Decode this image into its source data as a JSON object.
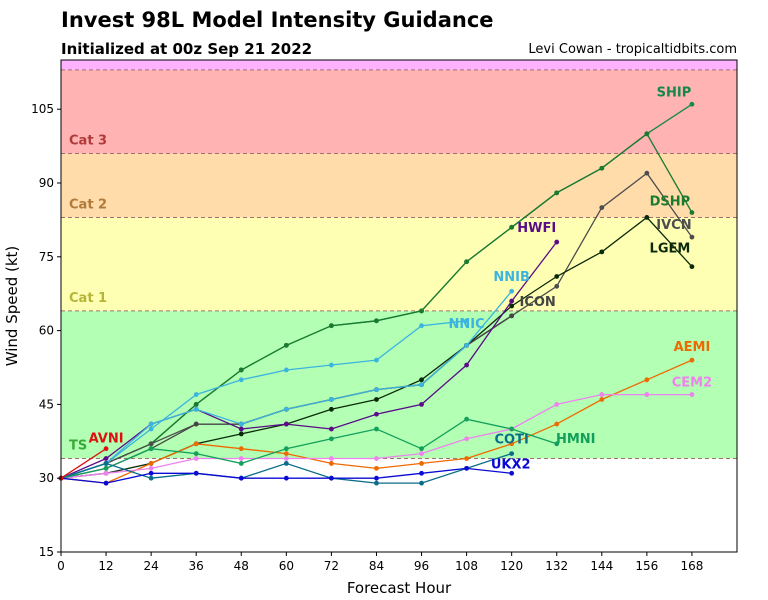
{
  "header": {
    "title": "Invest 98L Model Intensity Guidance",
    "subtitle": "Initialized at 00z Sep 21 2022",
    "credit": "Levi Cowan - tropicaltidbits.com"
  },
  "chart_data": {
    "type": "line",
    "xlabel": "Forecast Hour",
    "ylabel": "Wind Speed (kt)",
    "xlim": [
      0,
      180
    ],
    "ylim": [
      15,
      115
    ],
    "xticks": [
      0,
      12,
      24,
      36,
      48,
      60,
      72,
      84,
      96,
      108,
      120,
      132,
      144,
      156,
      168
    ],
    "yticks": [
      15,
      30,
      45,
      60,
      75,
      90,
      105
    ],
    "grid": false,
    "bands": [
      {
        "name": "TS",
        "from": 34,
        "to": 64,
        "color": "#b3ffb3",
        "label_color": "#3aa83a"
      },
      {
        "name": "Cat 1",
        "from": 64,
        "to": 83,
        "color": "#ffffb3",
        "label_color": "#b5b53a"
      },
      {
        "name": "Cat 2",
        "from": 83,
        "to": 96,
        "color": "#ffdcaa",
        "label_color": "#b07a3a"
      },
      {
        "name": "Cat 3",
        "from": 96,
        "to": 113,
        "color": "#ffb3b3",
        "label_color": "#b03a3a"
      },
      {
        "name": "",
        "from": 113,
        "to": 115,
        "color": "#ffb3ff",
        "label_color": "#b03ab0"
      }
    ],
    "series": [
      {
        "name": "SHIP",
        "color": "#11894a",
        "x": [
          0,
          12,
          24,
          36,
          48,
          60,
          72,
          84,
          96,
          108,
          120,
          132,
          144,
          156,
          168
        ],
        "y": [
          30,
          33,
          37,
          45,
          52,
          57,
          61,
          62,
          64,
          74,
          81,
          88,
          93,
          100,
          106
        ]
      },
      {
        "name": "DSHP",
        "color": "#1a7a30",
        "x": [
          0,
          12,
          24,
          36,
          48,
          60,
          72,
          84,
          96,
          108,
          120,
          132,
          144,
          156,
          168
        ],
        "y": [
          30,
          33,
          37,
          45,
          52,
          57,
          61,
          62,
          64,
          74,
          81,
          88,
          93,
          100,
          84
        ]
      },
      {
        "name": "IVCN",
        "color": "#4d4d4d",
        "x": [
          0,
          12,
          24,
          36,
          48,
          60,
          72,
          84,
          96,
          108,
          120,
          132,
          144,
          156,
          168
        ],
        "y": [
          30,
          33,
          37,
          41,
          41,
          44,
          46,
          48,
          49,
          57,
          63,
          69,
          85,
          92,
          79
        ]
      },
      {
        "name": "LGEM",
        "color": "#0a2a0a",
        "x": [
          0,
          12,
          24,
          36,
          48,
          60,
          72,
          84,
          96,
          108,
          120,
          132,
          144,
          156,
          168
        ],
        "y": [
          30,
          31,
          33,
          37,
          39,
          41,
          44,
          46,
          50,
          57,
          65,
          71,
          76,
          83,
          73
        ]
      },
      {
        "name": "ICON",
        "color": "#444444",
        "x": [
          0,
          12,
          24,
          36,
          48,
          60,
          72,
          84,
          96,
          108,
          120
        ],
        "y": [
          30,
          32,
          36,
          41,
          41,
          44,
          46,
          48,
          49,
          57,
          63
        ]
      },
      {
        "name": "HWFI",
        "color": "#5a0c8a",
        "x": [
          0,
          12,
          24,
          36,
          48,
          60,
          72,
          84,
          96,
          108,
          120,
          132
        ],
        "y": [
          30,
          34,
          41,
          44,
          40,
          41,
          40,
          43,
          45,
          53,
          66,
          78
        ]
      },
      {
        "name": "NNIB",
        "color": "#3cb4e0",
        "x": [
          0,
          12,
          24,
          36,
          48,
          60,
          72,
          84,
          96,
          108,
          120
        ],
        "y": [
          30,
          33,
          41,
          44,
          41,
          44,
          46,
          48,
          49,
          57,
          68
        ]
      },
      {
        "name": "NNIC",
        "color": "#3cb4e0",
        "x": [
          0,
          12,
          24,
          36,
          48,
          60,
          72,
          84,
          96,
          108
        ],
        "y": [
          30,
          33,
          40,
          47,
          50,
          52,
          53,
          54,
          61,
          62
        ]
      },
      {
        "name": "AEMI",
        "color": "#ee6a00",
        "x": [
          0,
          12,
          24,
          36,
          48,
          60,
          72,
          84,
          96,
          108,
          120,
          132,
          144,
          156,
          168
        ],
        "y": [
          30,
          29,
          33,
          37,
          36,
          35,
          33,
          32,
          33,
          34,
          37,
          41,
          46,
          50,
          54
        ]
      },
      {
        "name": "CEM2",
        "color": "#ee82ee",
        "x": [
          0,
          12,
          24,
          36,
          48,
          60,
          72,
          84,
          96,
          108,
          120,
          132,
          144,
          156,
          168
        ],
        "y": [
          30,
          31,
          32,
          34,
          34,
          34,
          34,
          34,
          35,
          38,
          40,
          45,
          47,
          47,
          47
        ]
      },
      {
        "name": "HMNI",
        "color": "#12a05a",
        "x": [
          0,
          12,
          24,
          36,
          48,
          60,
          72,
          84,
          96,
          108,
          120,
          132
        ],
        "y": [
          30,
          32,
          36,
          35,
          33,
          36,
          38,
          40,
          36,
          42,
          40,
          37
        ]
      },
      {
        "name": "COTI",
        "color": "#0a6e8a",
        "x": [
          0,
          12,
          24,
          36,
          48,
          60,
          72,
          84,
          96,
          108,
          120
        ],
        "y": [
          30,
          33,
          30,
          31,
          30,
          33,
          30,
          29,
          29,
          32,
          35
        ]
      },
      {
        "name": "UKX2",
        "color": "#0a0ad4",
        "x": [
          0,
          12,
          24,
          36,
          48,
          60,
          72,
          84,
          96,
          108,
          120
        ],
        "y": [
          30,
          29,
          31,
          31,
          30,
          30,
          30,
          30,
          31,
          32,
          31
        ]
      },
      {
        "name": "AVNI",
        "color": "#dd1010",
        "x": [
          0,
          12
        ],
        "y": [
          30,
          36
        ]
      }
    ]
  }
}
